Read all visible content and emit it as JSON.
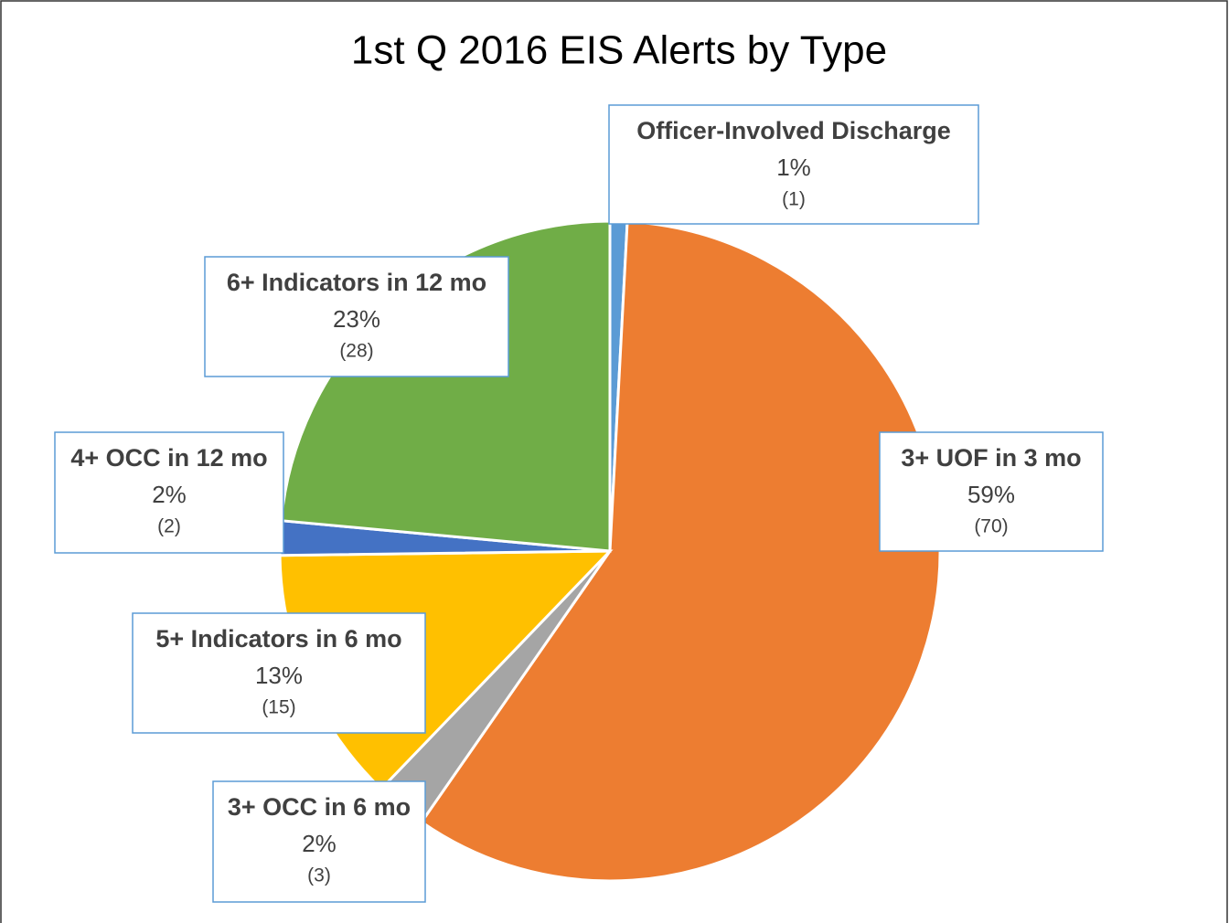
{
  "chart_data": {
    "type": "pie",
    "title": "1st Q 2016 EIS Alerts by Type",
    "categories": [
      "Officer-Involved Discharge",
      "3+ UOF in 3 mo",
      "3+ OCC in 6 mo",
      "5+ Indicators in 6 mo",
      "4+ OCC in 12 mo",
      "6+ Indicators in 12 mo"
    ],
    "values": [
      1,
      59,
      2,
      13,
      2,
      23
    ],
    "value_labels": [
      "1%",
      "59%",
      "2%",
      "13%",
      "2%",
      "23%"
    ],
    "counts": [
      1,
      70,
      3,
      15,
      2,
      28
    ],
    "count_labels": [
      "(1)",
      "(70)",
      "(3)",
      "(15)",
      "(2)",
      "(28)"
    ],
    "colors": [
      "#5b9bd5",
      "#ed7d31",
      "#a5a5a5",
      "#ffc000",
      "#4472c4",
      "#70ad47"
    ]
  }
}
